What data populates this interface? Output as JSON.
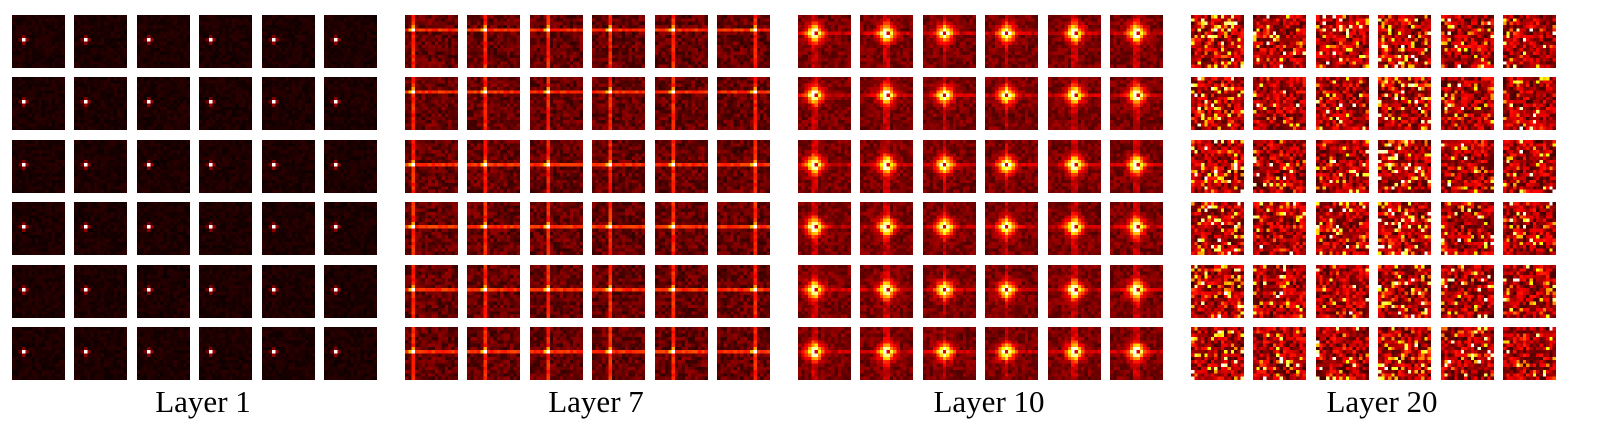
{
  "panels": [
    {
      "label": "Layer 1",
      "pattern": "point"
    },
    {
      "label": "Layer 7",
      "pattern": "cross"
    },
    {
      "label": "Layer 10",
      "pattern": "blob"
    },
    {
      "label": "Layer 20",
      "pattern": "noise"
    }
  ],
  "grid": {
    "rows": 6,
    "cols": 6,
    "pixels_per_side": 16
  },
  "colormap": "hot"
}
